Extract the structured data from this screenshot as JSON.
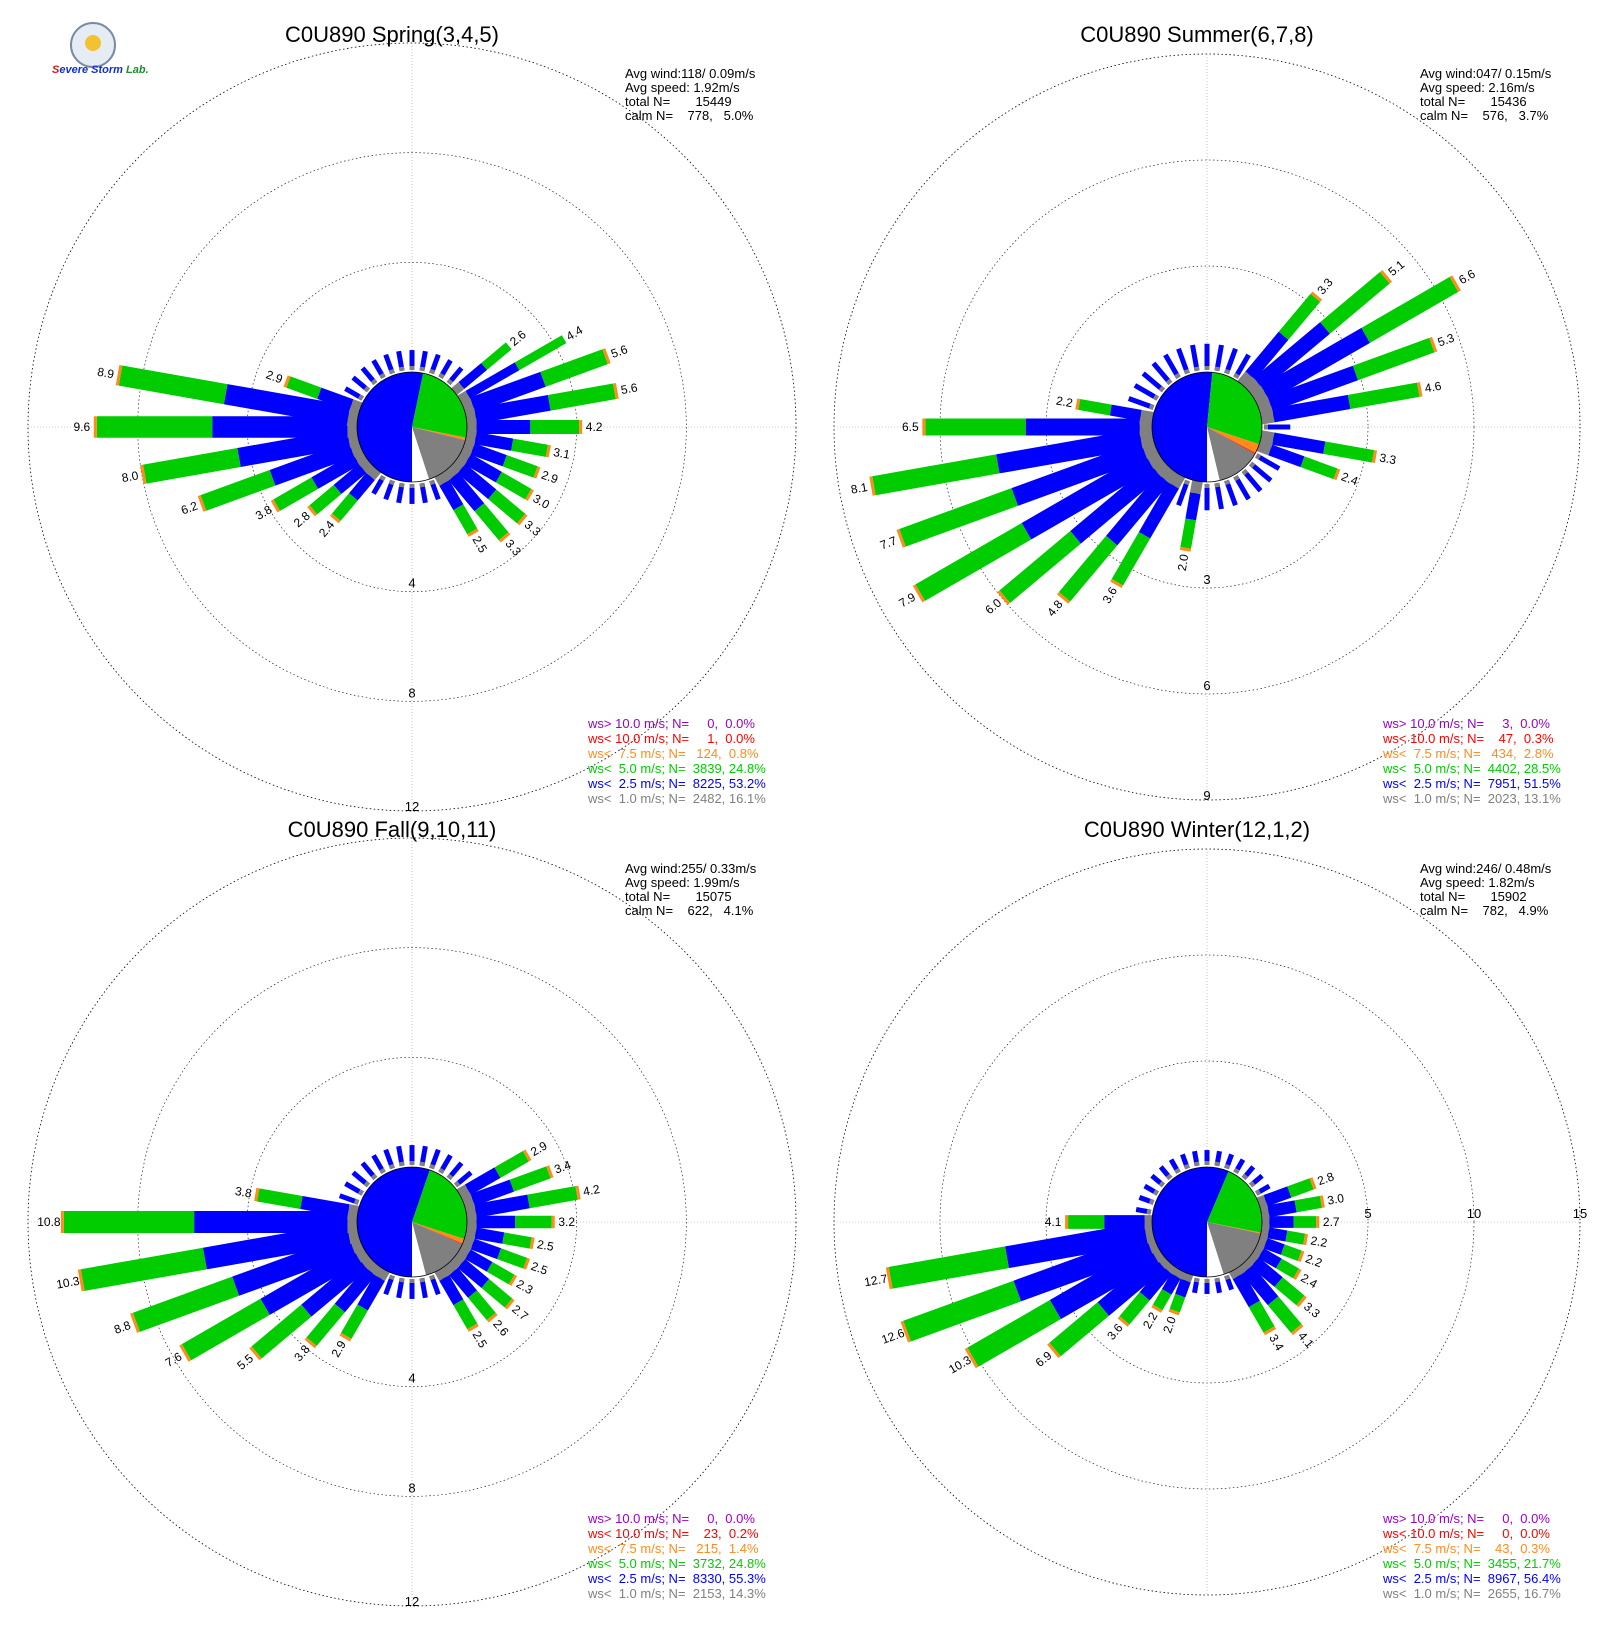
{
  "colors": {
    "gt10": "#9900cc",
    "lt10": "#ff0000",
    "lt7_5": "#ff8c1a",
    "lt5": "#00cc00",
    "lt2_5": "#0000ff",
    "lt1": "#808080"
  },
  "logo": {
    "lettering": "Severe Storm Lab."
  },
  "chart_data": [
    {
      "type": "polar-bar",
      "title": "C0U890 Spring(3,4,5)",
      "stats": [
        "Avg wind:118/ 0.09m/s",
        "Avg speed: 1.92m/s",
        "total N=       15449",
        "calm N=    778,   5.0%"
      ],
      "legend": [
        {
          "text": "ws> 10.0 m/s; N=     0,  0.0%",
          "color": "#9900cc"
        },
        {
          "text": "ws< 10.0 m/s; N=     1,  0.0%",
          "color": "#ff0000"
        },
        {
          "text": "ws<  7.5 m/s; N=   124,  0.8%",
          "color": "#ff8c1a"
        },
        {
          "text": "ws<  5.0 m/s; N=  3839, 24.8%",
          "color": "#00cc00"
        },
        {
          "text": "ws<  2.5 m/s; N=  8225, 53.2%",
          "color": "#0000ff"
        },
        {
          "text": "ws<  1.0 m/s; N=  2482, 16.1%",
          "color": "#808080"
        }
      ],
      "rings": [
        4,
        8,
        12
      ],
      "ring_labels": [
        "4",
        "8",
        "12"
      ],
      "rmax": 12,
      "center_pie": [
        {
          "class": "lt2_5",
          "value": 53.2
        },
        {
          "class": "lt5",
          "value": 24.8
        },
        {
          "class": "lt7_5",
          "value": 0.8
        },
        {
          "class": "lt10",
          "value": 0.0
        },
        {
          "class": "lt1",
          "value": 16.1
        },
        {
          "class": "calm",
          "value": 5.0
        }
      ],
      "directions_deg": [
        70,
        80,
        90,
        100,
        110,
        120,
        130,
        140,
        150,
        160,
        220,
        230,
        240,
        250,
        260,
        270,
        280,
        290
      ],
      "totals": [
        5.6,
        5.6,
        4.2,
        3.1,
        2.9,
        3.0,
        3.3,
        3.3,
        2.5,
        0.0,
        2.4,
        2.8,
        3.8,
        6.2,
        8.0,
        9.6,
        8.9,
        2.9
      ],
      "labels": [
        "5.6",
        "5.6",
        "4.2",
        "3.1",
        "2.9",
        "3.0",
        "3.3",
        "3.3",
        "2.5",
        "",
        "2.4",
        "2.8",
        "3.8",
        "6.2",
        "8.0",
        "9.6",
        "8.9",
        "2.9"
      ],
      "extra_labels": [
        {
          "deg": 50,
          "value": 2.6,
          "text": "2.6"
        },
        {
          "deg": 60,
          "value": 4.4,
          "text": "4.4"
        }
      ],
      "small_bar_value": 0.8
    },
    {
      "type": "polar-bar",
      "title": "C0U890 Summer(6,7,8)",
      "stats": [
        "Avg wind:047/ 0.15m/s",
        "Avg speed: 2.16m/s",
        "total N=       15436",
        "calm N=    576,   3.7%"
      ],
      "legend": [
        {
          "text": "ws> 10.0 m/s; N=     3,  0.0%",
          "color": "#9900cc"
        },
        {
          "text": "ws< 10.0 m/s; N=    47,  0.3%",
          "color": "#ff0000"
        },
        {
          "text": "ws<  7.5 m/s; N=   434,  2.8%",
          "color": "#ff8c1a"
        },
        {
          "text": "ws<  5.0 m/s; N=  4402, 28.5%",
          "color": "#00cc00"
        },
        {
          "text": "ws<  2.5 m/s; N=  7951, 51.5%",
          "color": "#0000ff"
        },
        {
          "text": "ws<  1.0 m/s; N=  2023, 13.1%",
          "color": "#808080"
        }
      ],
      "rings": [
        3,
        6,
        9
      ],
      "ring_labels": [
        "3",
        "6",
        "9"
      ],
      "rmax": 9,
      "center_pie": [
        {
          "class": "lt2_5",
          "value": 51.5
        },
        {
          "class": "lt5",
          "value": 28.5
        },
        {
          "class": "lt7_5",
          "value": 2.8
        },
        {
          "class": "lt10",
          "value": 0.3
        },
        {
          "class": "lt1",
          "value": 13.1
        },
        {
          "class": "calm",
          "value": 3.7
        }
      ],
      "directions_deg": [
        40,
        50,
        60,
        70,
        80,
        90,
        100,
        110,
        190,
        200,
        210,
        220,
        230,
        240,
        250,
        260,
        270,
        280,
        290
      ],
      "totals": [
        3.3,
        5.1,
        6.6,
        5.3,
        4.6,
        0.0,
        3.3,
        2.4,
        2.0,
        0.0,
        3.6,
        4.8,
        6.0,
        7.9,
        7.7,
        8.1,
        6.5,
        2.2,
        0.0
      ],
      "labels": [
        "3.3",
        "5.1",
        "6.6",
        "5.3",
        "4.6",
        "",
        "3.3",
        "2.4",
        "2.0",
        "",
        "3.6",
        "4.8",
        "6.0",
        "7.9",
        "7.7",
        "8.1",
        "6.5",
        "2.2",
        ""
      ],
      "extra_labels": [],
      "small_bar_value": 0.8
    },
    {
      "type": "polar-bar",
      "title": "C0U890 Fall(9,10,11)",
      "stats": [
        "Avg wind:255/ 0.33m/s",
        "Avg speed: 1.99m/s",
        "total N=       15075",
        "calm N=    622,   4.1%"
      ],
      "legend": [
        {
          "text": "ws> 10.0 m/s; N=     0,  0.0%",
          "color": "#9900cc"
        },
        {
          "text": "ws< 10.0 m/s; N=    23,  0.2%",
          "color": "#ff0000"
        },
        {
          "text": "ws<  7.5 m/s; N=   215,  1.4%",
          "color": "#ff8c1a"
        },
        {
          "text": "ws<  5.0 m/s; N=  3732, 24.8%",
          "color": "#00cc00"
        },
        {
          "text": "ws<  2.5 m/s; N=  8330, 55.3%",
          "color": "#0000ff"
        },
        {
          "text": "ws<  1.0 m/s; N=  2153, 14.3%",
          "color": "#808080"
        }
      ],
      "rings": [
        4,
        8,
        12
      ],
      "ring_labels": [
        "4",
        "8",
        "12"
      ],
      "rmax": 12,
      "center_pie": [
        {
          "class": "lt2_5",
          "value": 55.3
        },
        {
          "class": "lt5",
          "value": 24.8
        },
        {
          "class": "lt7_5",
          "value": 1.4
        },
        {
          "class": "lt10",
          "value": 0.2
        },
        {
          "class": "lt1",
          "value": 14.3
        },
        {
          "class": "calm",
          "value": 4.1
        }
      ],
      "directions_deg": [
        60,
        70,
        80,
        90,
        100,
        110,
        120,
        130,
        140,
        150,
        210,
        220,
        230,
        240,
        250,
        260,
        270,
        280,
        290
      ],
      "totals": [
        2.9,
        3.4,
        4.2,
        3.2,
        2.5,
        2.5,
        2.3,
        2.7,
        2.6,
        2.5,
        2.9,
        3.8,
        5.5,
        7.6,
        8.8,
        10.3,
        10.8,
        3.8,
        0.0
      ],
      "labels": [
        "2.9",
        "3.4",
        "4.2",
        "3.2",
        "2.5",
        "2.5",
        "2.3",
        "2.7",
        "2.6",
        "2.5",
        "2.9",
        "3.8",
        "5.5",
        "7.6",
        "8.8",
        "10.3",
        "10.8",
        "3.8",
        ""
      ],
      "extra_labels": [],
      "small_bar_value": 0.8
    },
    {
      "type": "polar-bar",
      "title": "C0U890 Winter(12,1,2)",
      "stats": [
        "Avg wind:246/ 0.48m/s",
        "Avg speed: 1.82m/s",
        "total N=       15902",
        "calm N=    782,   4.9%"
      ],
      "legend": [
        {
          "text": "ws> 10.0 m/s; N=     0,  0.0%",
          "color": "#9900cc"
        },
        {
          "text": "ws< 10.0 m/s; N=     0,  0.0%",
          "color": "#ff0000"
        },
        {
          "text": "ws<  7.5 m/s; N=    43,  0.3%",
          "color": "#ff8c1a"
        },
        {
          "text": "ws<  5.0 m/s; N=  3455, 21.7%",
          "color": "#00cc00"
        },
        {
          "text": "ws<  2.5 m/s; N=  8967, 56.4%",
          "color": "#0000ff"
        },
        {
          "text": "ws<  1.0 m/s; N=  2655, 16.7%",
          "color": "#808080"
        }
      ],
      "rings": [
        5,
        10,
        15
      ],
      "ring_labels": [
        "5",
        "10",
        "15"
      ],
      "rmax": 15,
      "center_pie": [
        {
          "class": "lt2_5",
          "value": 56.4
        },
        {
          "class": "lt5",
          "value": 21.7
        },
        {
          "class": "lt7_5",
          "value": 0.3
        },
        {
          "class": "lt10",
          "value": 0.0
        },
        {
          "class": "lt1",
          "value": 16.7
        },
        {
          "class": "calm",
          "value": 4.9
        }
      ],
      "directions_deg": [
        70,
        80,
        90,
        100,
        110,
        120,
        130,
        140,
        150,
        160,
        200,
        210,
        220,
        230,
        240,
        250,
        260,
        270,
        280,
        290
      ],
      "totals": [
        2.8,
        3.0,
        2.7,
        2.2,
        2.2,
        2.4,
        3.3,
        4.1,
        3.4,
        0.0,
        2.0,
        2.2,
        3.6,
        6.9,
        10.3,
        12.6,
        12.7,
        4.1,
        0.0,
        0.0
      ],
      "labels": [
        "2.8",
        "3.0",
        "2.7",
        "2.2",
        "2.2",
        "2.4",
        "3.3",
        "4.1",
        "3.4",
        "",
        "2.0",
        "2.2",
        "3.6",
        "6.9",
        "10.3",
        "12.6",
        "12.7",
        "4.1",
        "",
        ""
      ],
      "extra_labels": [],
      "small_bar_value": 0.8
    }
  ]
}
